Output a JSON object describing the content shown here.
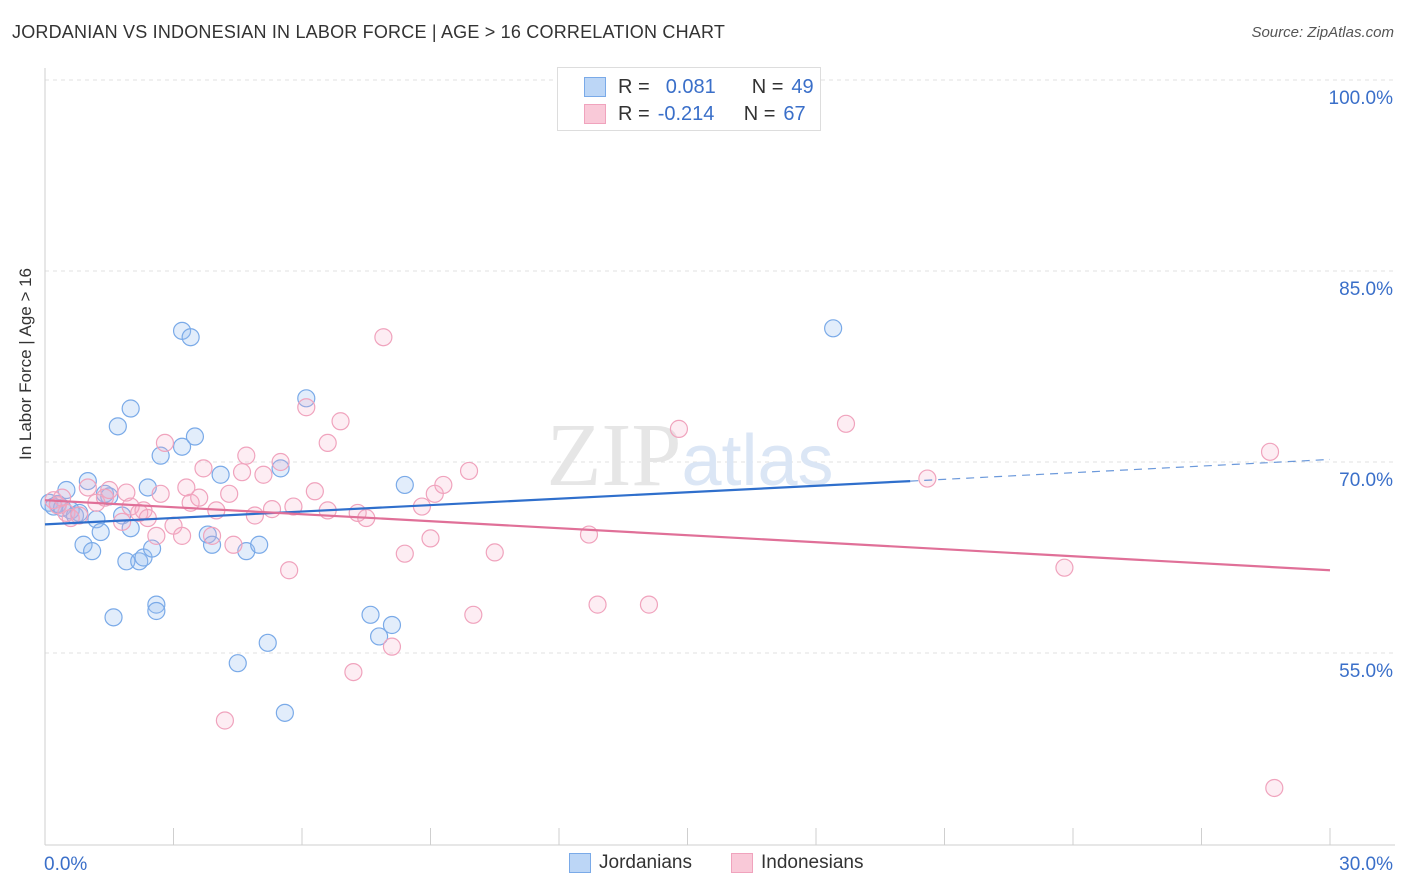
{
  "title": "JORDANIAN VS INDONESIAN IN LABOR FORCE | AGE > 16 CORRELATION CHART",
  "source": "Source: ZipAtlas.com",
  "stats": [
    {
      "r_label": "R =",
      "r_value": "0.081",
      "n_label": "N =",
      "n_value": "49"
    },
    {
      "r_label": "R =",
      "r_value": "-0.214",
      "n_label": "N =",
      "n_value": "67"
    }
  ],
  "chart_data": {
    "type": "scatter",
    "title": "JORDANIAN VS INDONESIAN IN LABOR FORCE | AGE > 16 CORRELATION CHART",
    "xlabel": "",
    "ylabel": "In Labor Force | Age > 16",
    "xlim": [
      0,
      30
    ],
    "ylim": [
      40,
      102
    ],
    "x_tick_labels": [
      "0.0%",
      "30.0%"
    ],
    "y_tick_labels": [
      "100.0%",
      "85.0%",
      "70.0%",
      "55.0%"
    ],
    "y_gridlines": [
      100,
      85,
      70,
      55
    ],
    "watermark": "ZIPatlas",
    "legend": [
      "Jordanians",
      "Indonesians"
    ],
    "series": [
      {
        "name": "Jordanians",
        "color": "#7aaae8",
        "trend_color": "#2f6fcc",
        "trend": {
          "x0": 0,
          "y0": 65.1,
          "x1": 20.2,
          "y1": 68.5,
          "dash_x1": 30,
          "dash_y1": 70.2
        },
        "points": [
          [
            0.1,
            66.8
          ],
          [
            0.2,
            66.5
          ],
          [
            0.3,
            66.7
          ],
          [
            0.4,
            66.4
          ],
          [
            0.5,
            67.8
          ],
          [
            0.6,
            66.2
          ],
          [
            0.7,
            65.8
          ],
          [
            0.8,
            66.0
          ],
          [
            0.9,
            63.5
          ],
          [
            1.0,
            68.5
          ],
          [
            1.1,
            63.0
          ],
          [
            1.2,
            65.5
          ],
          [
            1.3,
            64.5
          ],
          [
            1.4,
            67.5
          ],
          [
            1.5,
            67.3
          ],
          [
            1.6,
            57.8
          ],
          [
            1.7,
            72.8
          ],
          [
            1.8,
            65.8
          ],
          [
            1.9,
            62.2
          ],
          [
            2.0,
            64.8
          ],
          [
            2.0,
            74.2
          ],
          [
            2.2,
            62.2
          ],
          [
            2.3,
            62.5
          ],
          [
            2.4,
            68.0
          ],
          [
            2.5,
            63.2
          ],
          [
            2.6,
            58.8
          ],
          [
            2.6,
            58.3
          ],
          [
            2.7,
            70.5
          ],
          [
            3.2,
            80.3
          ],
          [
            3.2,
            71.2
          ],
          [
            3.4,
            79.8
          ],
          [
            3.5,
            72.0
          ],
          [
            3.8,
            64.3
          ],
          [
            3.9,
            63.5
          ],
          [
            4.1,
            69.0
          ],
          [
            4.5,
            54.2
          ],
          [
            4.7,
            63.0
          ],
          [
            5.0,
            63.5
          ],
          [
            5.2,
            55.8
          ],
          [
            5.5,
            69.5
          ],
          [
            5.6,
            50.3
          ],
          [
            6.1,
            75.0
          ],
          [
            7.6,
            58.0
          ],
          [
            7.8,
            56.3
          ],
          [
            8.1,
            57.2
          ],
          [
            8.4,
            68.2
          ],
          [
            18.4,
            80.5
          ]
        ]
      },
      {
        "name": "Indonesians",
        "color": "#f0a3bd",
        "trend_color": "#e07098",
        "trend": {
          "x0": 0,
          "y0": 67.0,
          "x1": 30,
          "y1": 61.5
        },
        "points": [
          [
            0.2,
            67.0
          ],
          [
            0.3,
            66.6
          ],
          [
            0.4,
            67.2
          ],
          [
            0.5,
            66.0
          ],
          [
            0.6,
            65.6
          ],
          [
            0.8,
            65.8
          ],
          [
            1.0,
            68.0
          ],
          [
            1.2,
            66.8
          ],
          [
            1.4,
            67.2
          ],
          [
            1.5,
            67.8
          ],
          [
            1.8,
            65.3
          ],
          [
            1.9,
            67.6
          ],
          [
            2.0,
            66.5
          ],
          [
            2.2,
            66.0
          ],
          [
            2.3,
            66.2
          ],
          [
            2.4,
            65.6
          ],
          [
            2.6,
            64.2
          ],
          [
            2.7,
            67.5
          ],
          [
            2.8,
            71.5
          ],
          [
            3.0,
            65.0
          ],
          [
            3.2,
            64.2
          ],
          [
            3.3,
            68.0
          ],
          [
            3.4,
            66.8
          ],
          [
            3.6,
            67.2
          ],
          [
            3.7,
            69.5
          ],
          [
            3.9,
            64.2
          ],
          [
            4.0,
            66.2
          ],
          [
            4.3,
            67.5
          ],
          [
            4.4,
            63.5
          ],
          [
            4.6,
            69.2
          ],
          [
            4.7,
            70.5
          ],
          [
            4.9,
            65.8
          ],
          [
            5.1,
            69.0
          ],
          [
            5.3,
            66.3
          ],
          [
            5.5,
            70.0
          ],
          [
            5.7,
            61.5
          ],
          [
            5.8,
            66.5
          ],
          [
            6.1,
            74.3
          ],
          [
            6.3,
            67.7
          ],
          [
            6.6,
            71.5
          ],
          [
            6.6,
            66.2
          ],
          [
            6.9,
            73.2
          ],
          [
            7.2,
            53.5
          ],
          [
            7.3,
            66.0
          ],
          [
            7.5,
            65.6
          ],
          [
            7.9,
            79.8
          ],
          [
            8.1,
            55.5
          ],
          [
            8.4,
            62.8
          ],
          [
            8.8,
            66.5
          ],
          [
            9.0,
            64.0
          ],
          [
            9.1,
            67.5
          ],
          [
            9.3,
            68.2
          ],
          [
            9.9,
            69.3
          ],
          [
            10.0,
            58.0
          ],
          [
            10.5,
            62.9
          ],
          [
            12.7,
            64.3
          ],
          [
            12.9,
            58.8
          ],
          [
            14.1,
            58.8
          ],
          [
            14.8,
            72.6
          ],
          [
            18.7,
            73.0
          ],
          [
            20.6,
            68.7
          ],
          [
            23.8,
            61.7
          ],
          [
            28.6,
            70.8
          ],
          [
            28.7,
            44.4
          ],
          [
            4.2,
            49.7
          ]
        ]
      }
    ]
  }
}
